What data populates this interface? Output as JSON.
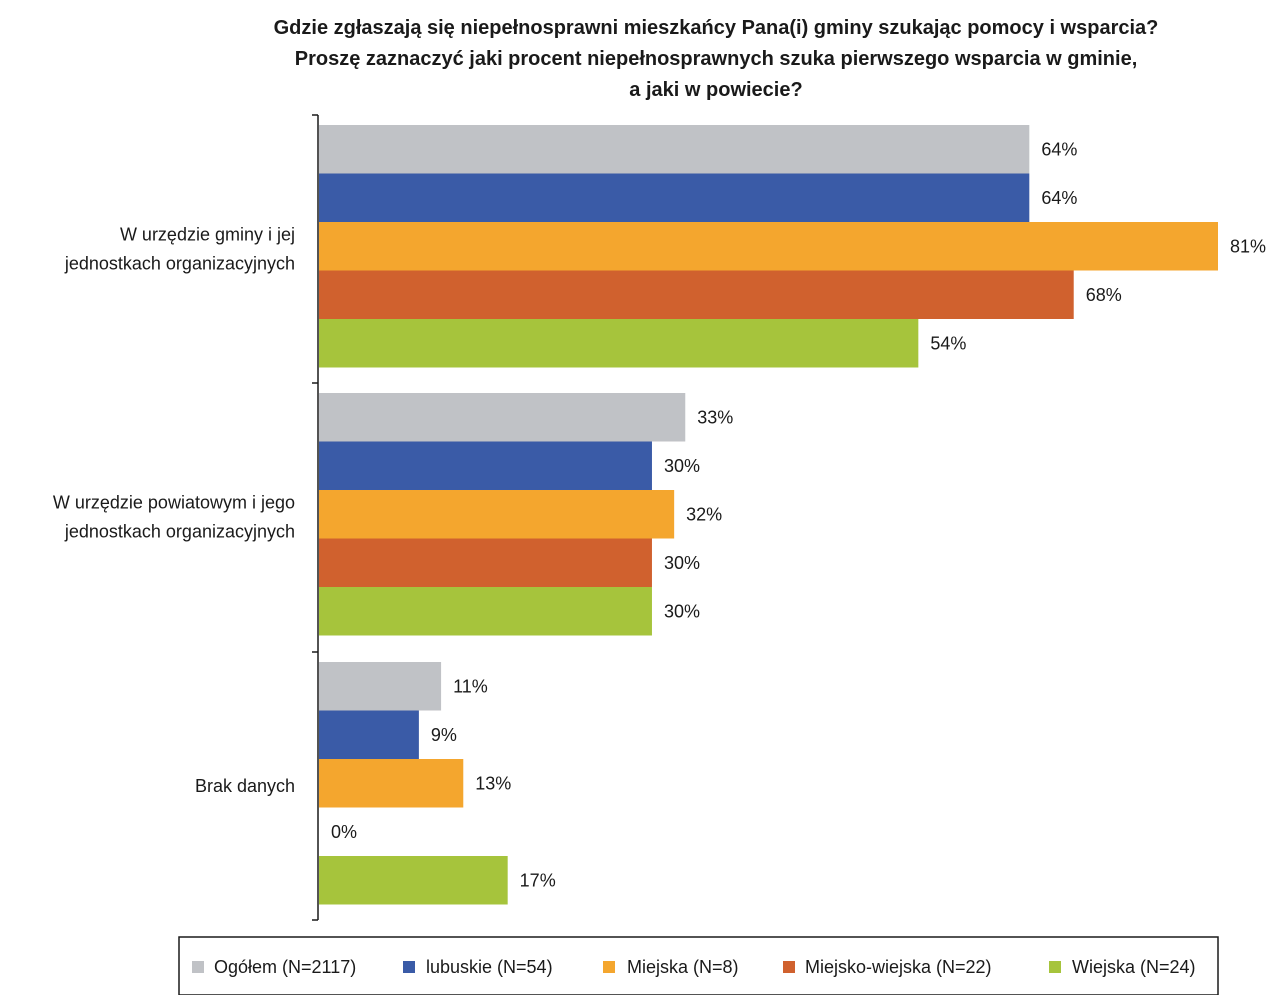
{
  "chart_data": {
    "type": "bar",
    "orientation": "horizontal",
    "title": [
      "Gdzie zgłaszają się niepełnosprawni mieszkańcy Pana(i) gminy szukając pomocy i wsparcia?",
      "Proszę zaznaczyć jaki procent niepełnosprawnych szuka pierwszego wsparcia w gminie,",
      "a jaki w powiecie?"
    ],
    "categories": [
      [
        "W urzędzie gminy i jej",
        "jednostkach organizacyjnych"
      ],
      [
        "W urzędzie powiatowym i jego",
        "jednostkach organizacyjnych"
      ],
      [
        "Brak danych"
      ]
    ],
    "xlim": [
      0,
      85
    ],
    "value_suffix": "%",
    "series": [
      {
        "name": "Ogółem (N=2117)",
        "color": "#c0c2c6",
        "values": [
          64,
          33,
          11
        ]
      },
      {
        "name": "lubuskie (N=54)",
        "color": "#3a5ba7",
        "values": [
          64,
          30,
          9
        ]
      },
      {
        "name": "Miejska  (N=8)",
        "color": "#f4a62e",
        "values": [
          81,
          32,
          13
        ]
      },
      {
        "name": "Miejsko-wiejska (N=22)",
        "color": "#d0612e",
        "values": [
          68,
          30,
          0
        ]
      },
      {
        "name": "Wiejska (N=24)",
        "color": "#a6c43c",
        "values": [
          54,
          30,
          17
        ]
      }
    ],
    "legend_position": "bottom",
    "grid": false
  }
}
